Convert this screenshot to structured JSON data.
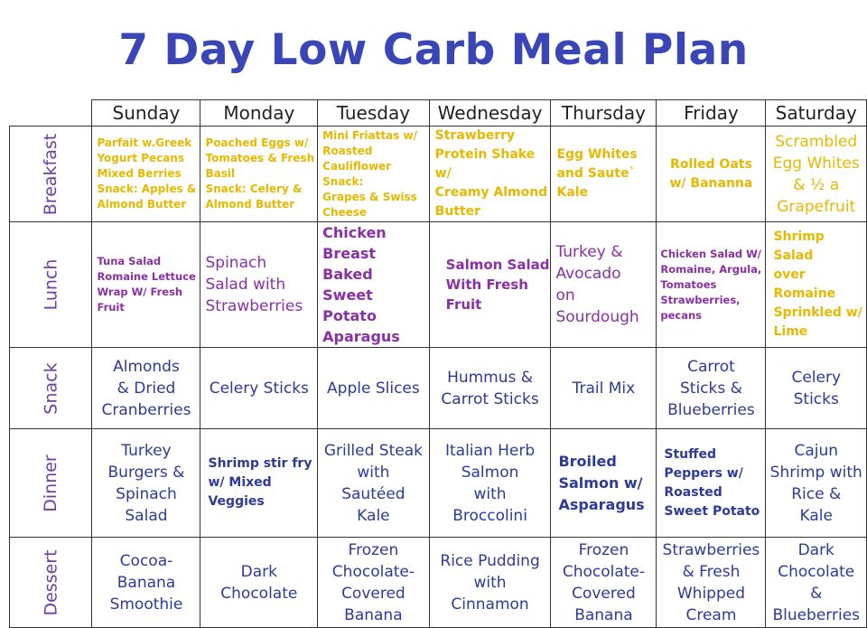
{
  "title": "7 Day Low Carb Meal Plan",
  "days": [
    "Sunday",
    "Monday",
    "Tuesday",
    "Wednesday",
    "Thursday",
    "Friday",
    "Saturday"
  ],
  "meals": [
    "Breakfast",
    "Lunch",
    "Snack",
    "Dinner",
    "Dessert"
  ],
  "colors": {
    "title": "#3a45b8",
    "yellow_text": "#e8b800",
    "purple_text": "#8a2fa8",
    "blue_text": "#2c3a9a",
    "row_label": "#6d3ea2"
  },
  "grid": {
    "breakfast": [
      "Parfait w.Greek\nYogurt Pecans\nMixed Berries\nSnack: Apples &\nAlmond Butter",
      "Poached Eggs w/\nTomatoes & Fresh\nBasil\nSnack: Celery &\nAlmond Butter",
      "Mini Friattas w/\nRoasted Cauliflower\nSnack:\nGrapes & Swiss\nCheese",
      "Strawberry\nProtein Shake w/\nCreamy Almond\nButter",
      "Egg Whites\nand Saute`\nKale",
      "Rolled Oats\nw/ Bananna",
      "Scrambled\nEgg Whites\n& ½ a\nGrapefruit"
    ],
    "lunch": [
      "Tuna Salad\nRomaine Lettuce\nWrap W/ Fresh\nFruit",
      "Spinach\nSalad with\nStrawberries",
      "Chicken\nBreast Baked\nSweet Potato\nAparagus",
      "Salmon Salad\nWith Fresh\nFruit",
      "Turkey &\nAvocado\non\nSourdough",
      "Chicken Salad W/\nRomaine, Argula,\nTomatoes\nStrawberries,\npecans",
      "Shrimp Salad\nover Romaine\nSprinkled w/\nLime"
    ],
    "snack": [
      "Almonds\n& Dried\nCranberries",
      "Celery Sticks",
      "Apple Slices",
      "Hummus &\nCarrot Sticks",
      "Trail Mix",
      "Carrot\nSticks &\nBlueberries",
      "Celery\nSticks"
    ],
    "dinner": [
      "Turkey\nBurgers &\nSpinach\nSalad",
      "Shrimp stir fry\nw/ Mixed\nVeggies",
      "Grilled Steak\nwith\nSautéed\nKale",
      "Italian Herb\nSalmon\nwith\nBroccolini",
      "Broiled\nSalmon w/\nAsparagus",
      "Stuffed\nPeppers w/\nRoasted\nSweet Potato",
      "Cajun\nShrimp with\nRice &\nKale"
    ],
    "dessert": [
      "Cocoa-\nBanana\nSmoothie",
      "Dark\nChocolate",
      "Frozen\nChocolate-\nCovered\nBanana",
      "Rice Pudding\nwith\nCinnamon",
      "Frozen\nChocolate-\nCovered\nBanana",
      "Strawberries\n& Fresh\nWhipped\nCream",
      "Dark\nChocolate\n&\nBlueberries"
    ]
  }
}
